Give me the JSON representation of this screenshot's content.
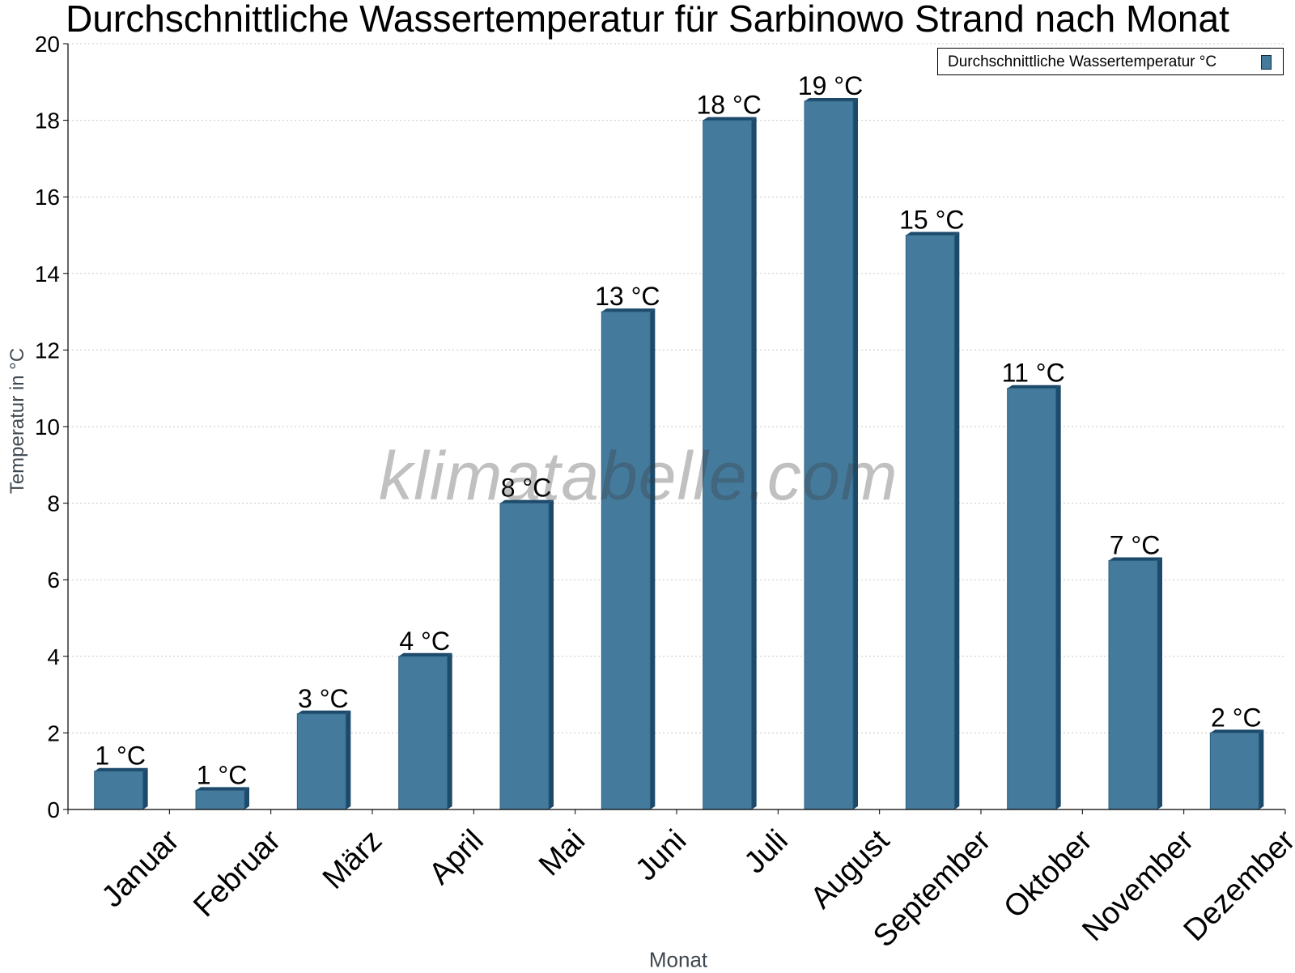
{
  "chart_data": {
    "type": "bar",
    "title": "Durchschnittliche Wassertemperatur für Sarbinowo Strand nach Monat",
    "xlabel": "Monat",
    "ylabel": "Temperatur in °C",
    "categories": [
      "Januar",
      "Februar",
      "März",
      "April",
      "Mai",
      "Juni",
      "Juli",
      "August",
      "September",
      "Oktober",
      "November",
      "Dezember"
    ],
    "series": [
      {
        "name": "Durchschnittliche Wassertemperatur °C",
        "values": [
          1,
          0.5,
          2.5,
          4,
          8,
          13,
          18,
          18.5,
          15,
          11,
          6.5,
          2
        ],
        "labels": [
          "1 °C",
          "1 °C",
          "3 °C",
          "4 °C",
          "8 °C",
          "13 °C",
          "18 °C",
          "19 °C",
          "15 °C",
          "11 °C",
          "7 °C",
          "2 °C"
        ]
      }
    ],
    "ylim": [
      0,
      20
    ],
    "yticks": [
      "0",
      "2",
      "4",
      "6",
      "8",
      "10",
      "12",
      "14",
      "16",
      "18",
      "20"
    ],
    "grid": true,
    "legend_position": "top-right",
    "colors": {
      "bar": "#447b9c",
      "bar_side": "#1c4a6b",
      "grid": "#c8c8c8"
    },
    "watermark": "klimatabelle.com"
  }
}
